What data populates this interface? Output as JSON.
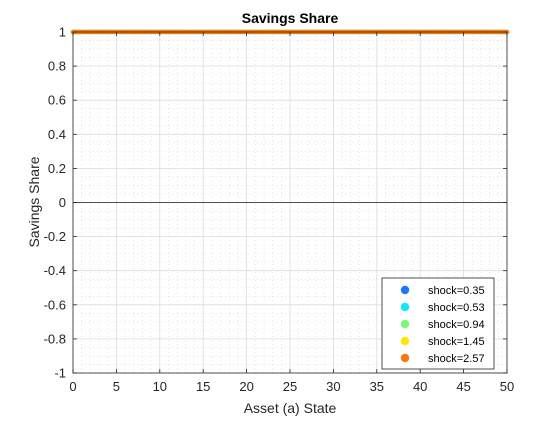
{
  "chart_data": {
    "type": "scatter",
    "title": "Savings Share",
    "xlabel": "Asset (a) State",
    "ylabel": "Savings Share",
    "xlim": [
      0,
      50
    ],
    "ylim": [
      -1,
      1
    ],
    "xticks": [
      0,
      5,
      10,
      15,
      20,
      25,
      30,
      35,
      40,
      45,
      50
    ],
    "yticks": [
      -1,
      -0.8,
      -0.6,
      -0.4,
      -0.2,
      0,
      0.2,
      0.4,
      0.6,
      0.8,
      1
    ],
    "grid": true,
    "minor_grid": true,
    "zero_line": true,
    "legend_position": "bottom-right",
    "series": [
      {
        "name": "shock=0.35",
        "color": "#1a78ff",
        "x_range": [
          0,
          50
        ],
        "y": 1
      },
      {
        "name": "shock=0.53",
        "color": "#10e8f8",
        "x_range": [
          0,
          50
        ],
        "y": 1
      },
      {
        "name": "shock=0.94",
        "color": "#78f878",
        "x_range": [
          0,
          50
        ],
        "y": 1
      },
      {
        "name": "shock=1.45",
        "color": "#ffe800",
        "x_range": [
          0,
          50
        ],
        "y": 1
      },
      {
        "name": "shock=2.57",
        "color": "#f57a0c",
        "x_range": [
          0,
          50
        ],
        "y": 1
      }
    ]
  }
}
